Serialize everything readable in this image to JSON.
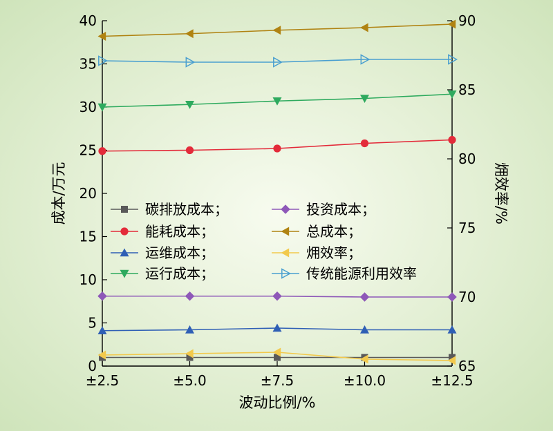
{
  "chart_data": {
    "type": "line",
    "xlabel": "波动比例/%",
    "ylabel": "成本/万元",
    "y2label": "㶲效率/%",
    "categories": [
      "±2.5",
      "±5.0",
      "±7.5",
      "±10.0",
      "±12.5"
    ],
    "ylim": [
      0,
      40
    ],
    "yticks": [
      0,
      5,
      10,
      15,
      20,
      25,
      30,
      35,
      40
    ],
    "y2lim": [
      65,
      90
    ],
    "y2ticks": [
      65,
      70,
      75,
      80,
      85,
      90
    ],
    "grid": false,
    "legend_position": "center-left",
    "series": [
      {
        "name": "碳排放成本；",
        "axis": "left",
        "color": "#595959",
        "marker": "square",
        "values": [
          1.0,
          1.0,
          1.0,
          1.0,
          1.0
        ]
      },
      {
        "name": "投资成本；",
        "axis": "left",
        "color": "#8e58b8",
        "marker": "diamond",
        "values": [
          8.1,
          8.1,
          8.1,
          8.0,
          8.0
        ]
      },
      {
        "name": "能耗成本；",
        "axis": "left",
        "color": "#e32b3a",
        "marker": "circle",
        "values": [
          24.9,
          25.0,
          25.2,
          25.8,
          26.2
        ]
      },
      {
        "name": "总成本；",
        "axis": "left",
        "color": "#b08312",
        "marker": "triangle-left",
        "values": [
          38.2,
          38.5,
          38.9,
          39.2,
          39.6
        ]
      },
      {
        "name": "运维成本；",
        "axis": "left",
        "color": "#2f5fb5",
        "marker": "triangle-up",
        "values": [
          4.1,
          4.2,
          4.4,
          4.2,
          4.2
        ]
      },
      {
        "name": "㶲效率；",
        "axis": "right",
        "color": "#f2c94c",
        "marker": "triangle-left",
        "values": [
          65.8,
          65.9,
          66.0,
          65.5,
          65.4
        ]
      },
      {
        "name": "运行成本；",
        "axis": "left",
        "color": "#2eaa5e",
        "marker": "triangle-down",
        "values": [
          30.0,
          30.3,
          30.7,
          31.0,
          31.5
        ]
      },
      {
        "name": "传统能源利用效率",
        "axis": "right",
        "color": "#4a9fd0",
        "marker": "triangle-right",
        "values": [
          87.1,
          87.0,
          87.0,
          87.2,
          87.2
        ]
      }
    ]
  }
}
